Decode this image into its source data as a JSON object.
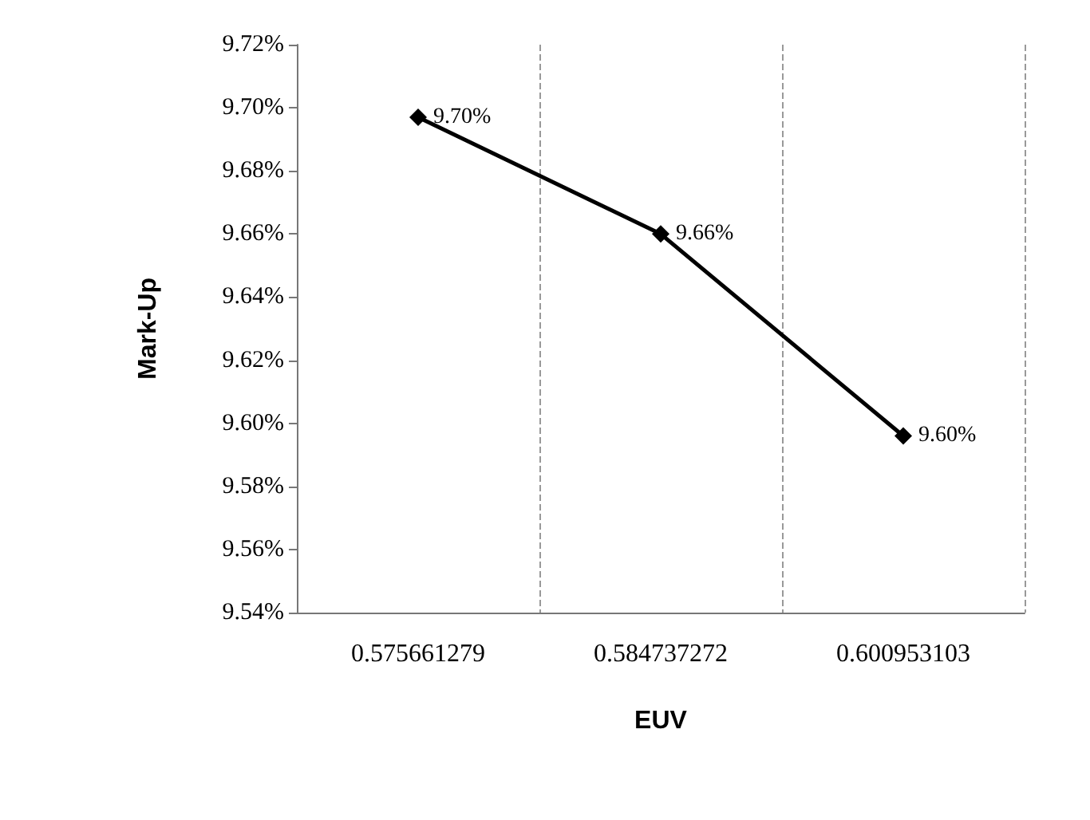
{
  "chart_data": {
    "type": "line",
    "xlabel": "EUV",
    "ylabel": "Mark-Up",
    "categories": [
      "0.575661279",
      "0.584737272",
      "0.600953103"
    ],
    "series": [
      {
        "color": "#000000",
        "values": [
          9.697,
          9.66,
          9.596
        ],
        "value_labels": [
          "9.70%",
          "9.66%",
          "9.60%"
        ]
      }
    ],
    "ylim": [
      9.54,
      9.72
    ],
    "yticks": [
      {
        "value": 9.54,
        "label": "9.54%"
      },
      {
        "value": 9.56,
        "label": "9.56%"
      },
      {
        "value": 9.58,
        "label": "9.58%"
      },
      {
        "value": 9.6,
        "label": "9.60%"
      },
      {
        "value": 9.62,
        "label": "9.62%"
      },
      {
        "value": 9.64,
        "label": "9.64%"
      },
      {
        "value": 9.66,
        "label": "9.66%"
      },
      {
        "value": 9.68,
        "label": "9.68%"
      },
      {
        "value": 9.7,
        "label": "9.70%"
      },
      {
        "value": 9.72,
        "label": "9.72%"
      }
    ],
    "grid": "x",
    "marker": "diamond",
    "line_style": "solid"
  }
}
